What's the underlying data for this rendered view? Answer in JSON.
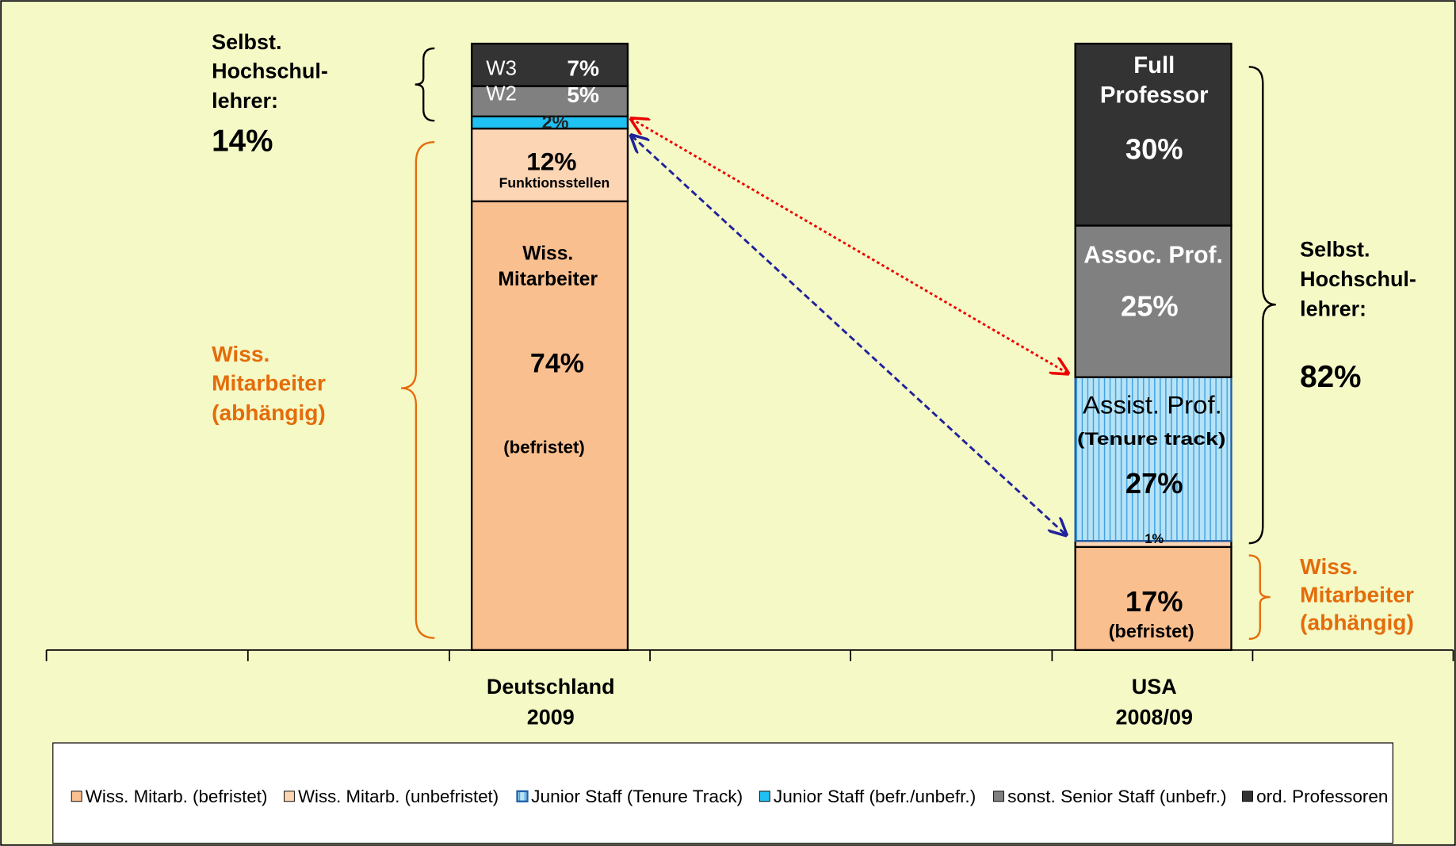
{
  "chart_data": {
    "type": "stacked-bar",
    "categories": [
      [
        "Deutschland",
        "2009"
      ],
      [
        "USA",
        "2008/09"
      ]
    ],
    "ylim": [
      0,
      100
    ],
    "series": [
      {
        "name": "Wiss. Mitarb. (befristet)",
        "color": "#f9bf8f",
        "values": [
          74,
          17
        ],
        "value_labels": [
          "74%",
          "17%"
        ],
        "labels": [
          [
            "Wiss.",
            "Mitarbeiter",
            "(befristet)"
          ],
          [
            "(befristet)"
          ]
        ]
      },
      {
        "name": "Wiss. Mitarb. (unbefristet)",
        "color": "#fcd5b5",
        "values": [
          12,
          1
        ],
        "value_labels": [
          "12%",
          "1%"
        ],
        "labels": [
          [
            "Funktionsstellen"
          ],
          null
        ]
      },
      {
        "name": "Junior Staff (Tenure Track)",
        "color": "#b7e3f6",
        "hatch": true,
        "values": [
          null,
          27
        ],
        "value_labels": [
          null,
          "27%"
        ],
        "labels": [
          null,
          [
            "Assist. Prof.",
            "(Tenure track)"
          ]
        ]
      },
      {
        "name": "Junior Staff (befr./unbefr.)",
        "color": "#1fc0f2",
        "values": [
          2,
          null
        ],
        "value_labels": [
          "2%",
          null
        ]
      },
      {
        "name": "sonst. Senior Staff (unbefr.)",
        "color": "#808080",
        "values": [
          5,
          25
        ],
        "value_labels": [
          "5%",
          "25%"
        ],
        "labels": [
          [
            "W2"
          ],
          [
            "Assoc. Prof."
          ]
        ]
      },
      {
        "name": "ord. Professoren",
        "color": "#333333",
        "values": [
          7,
          30
        ],
        "value_labels": [
          "7%",
          "30%"
        ],
        "labels": [
          [
            "W3"
          ],
          [
            "Full",
            "Professor"
          ]
        ]
      }
    ],
    "annotations": [
      {
        "lines": [
          "Selbst.",
          "Hochschul-",
          "lehrer:"
        ],
        "value": "14%"
      },
      {
        "lines": [
          "Wiss.",
          "Mitarbeiter",
          "(abhängig)"
        ]
      },
      {
        "lines": [
          "Selbst.",
          "Hochschul-",
          "lehrer:"
        ],
        "value": "82%"
      },
      {
        "lines": [
          "Wiss.",
          "Mitarbeiter",
          "(abhängig)"
        ]
      }
    ]
  }
}
